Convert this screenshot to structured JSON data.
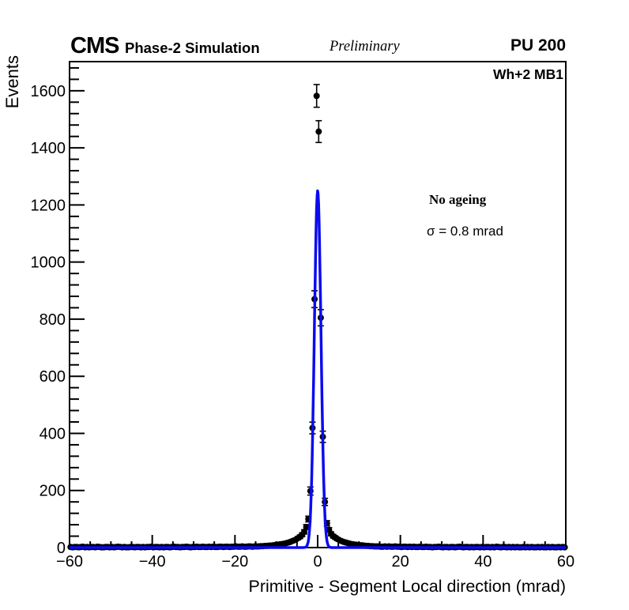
{
  "header": {
    "experiment": "CMS",
    "label": "Phase-2 Simulation",
    "status": "Preliminary",
    "pileup": "PU 200"
  },
  "plot": {
    "region_label": "Wh+2 MB1",
    "annotation1": "No ageing",
    "annotation2": "σ = 0.8 mrad"
  },
  "colors": {
    "marker": "#000000",
    "fit_line": "#0b0bf0",
    "frame": "#000000",
    "background": "#ffffff"
  },
  "chart_data": {
    "type": "scatter",
    "title": "",
    "xlabel": "Primitive - Segment Local direction (mrad)",
    "ylabel": "Events",
    "xlim": [
      -60,
      60
    ],
    "ylim": [
      0,
      1702
    ],
    "x_major_ticks": [
      -60,
      -40,
      -20,
      0,
      20,
      40,
      60
    ],
    "x_minor_step": 5,
    "y_major_ticks": [
      0,
      200,
      400,
      600,
      800,
      1000,
      1200,
      1400,
      1600
    ],
    "y_minor_step": 40,
    "grid": false,
    "legend": "none",
    "series": [
      {
        "name": "data-points",
        "type": "scatter-errorbar",
        "marker": "filled-circle",
        "color": "#000000",
        "errors": "sqrt(N)",
        "bin_width": 0.5,
        "bins": {
          "start": -59.75,
          "step": 0.5,
          "values": [
            2,
            1,
            2,
            2,
            1,
            2,
            3,
            1,
            2,
            1,
            2,
            2,
            1,
            3,
            2,
            1,
            1,
            2,
            2,
            1,
            2,
            1,
            2,
            3,
            2,
            1,
            2,
            1,
            1,
            2,
            2,
            1,
            2,
            2,
            1,
            2,
            1,
            2,
            2,
            3,
            1,
            2,
            2,
            1,
            2,
            1,
            2,
            2,
            1,
            2,
            3,
            2,
            2,
            1,
            2,
            2,
            3,
            2,
            1,
            2,
            2,
            3,
            2,
            2,
            3,
            2,
            2,
            3,
            2,
            3,
            2,
            2,
            3,
            3,
            2,
            3,
            3,
            2,
            3,
            3,
            4,
            3,
            3,
            4,
            3,
            3,
            4,
            4,
            3,
            4,
            4,
            4,
            5,
            5,
            6,
            6,
            7,
            7,
            8,
            9,
            10,
            11,
            12,
            13,
            15,
            17,
            19,
            22,
            25,
            28,
            33,
            38,
            45,
            55,
            72,
            100,
            198,
            419,
            870,
            1582,
            1457,
            805,
            388,
            160,
            85,
            62,
            48,
            40,
            35,
            30,
            26,
            23,
            20,
            18,
            16,
            14,
            12,
            11,
            10,
            9,
            8,
            8,
            7,
            6,
            6,
            5,
            5,
            4,
            4,
            4,
            3,
            3,
            4,
            3,
            4,
            3,
            3,
            4,
            3,
            3,
            2,
            3,
            3,
            2,
            3,
            2,
            3,
            2,
            2,
            3,
            2,
            2,
            3,
            2,
            2,
            1,
            2,
            2,
            3,
            2,
            1,
            2,
            2,
            1,
            2,
            2,
            1,
            2,
            3,
            2,
            1,
            2,
            2,
            1,
            2,
            1,
            2,
            2,
            1,
            2,
            1,
            2,
            2,
            1,
            2,
            1,
            3,
            2,
            1,
            2,
            2,
            1,
            2,
            1,
            2,
            1,
            2,
            1,
            1,
            2,
            1,
            2,
            1,
            2,
            1,
            1,
            2,
            1,
            2,
            1,
            1,
            2,
            1,
            2,
            1,
            1,
            2,
            1,
            2,
            1
          ]
        }
      },
      {
        "name": "gaussian-fit",
        "type": "line",
        "color": "#0b0bf0",
        "amplitude": 1250,
        "mean": 0.0,
        "sigma": 0.8
      }
    ]
  }
}
